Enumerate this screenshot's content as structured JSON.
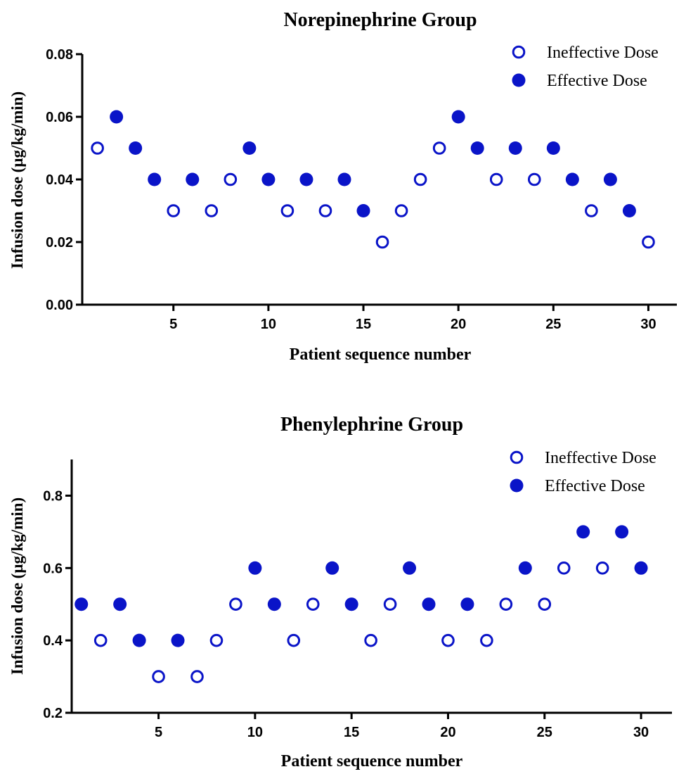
{
  "colors": {
    "marker": "#0a14c8",
    "axis": "#000000"
  },
  "chart_data": [
    {
      "type": "scatter",
      "title": "Norepinephrine Group",
      "xlabel": "Patient sequence number",
      "ylabel": "Infusion dose (µg/kg/min)",
      "xlim": [
        0.2,
        31.5
      ],
      "ylim": [
        0,
        0.08
      ],
      "xticks": [
        5,
        10,
        15,
        20,
        25,
        30
      ],
      "yticks": [
        0,
        0.02,
        0.04,
        0.06,
        0.08
      ],
      "ytick_labels": [
        "0.00",
        "0.02",
        "0.04",
        "0.06",
        "0.08"
      ],
      "legend_position": "top-right",
      "series": [
        {
          "name": "Ineffective Dose",
          "marker": "open-circle",
          "points": [
            [
              1,
              0.05
            ],
            [
              5,
              0.03
            ],
            [
              7,
              0.03
            ],
            [
              8,
              0.04
            ],
            [
              11,
              0.03
            ],
            [
              13,
              0.03
            ],
            [
              16,
              0.02
            ],
            [
              17,
              0.03
            ],
            [
              18,
              0.04
            ],
            [
              19,
              0.05
            ],
            [
              22,
              0.04
            ],
            [
              24,
              0.04
            ],
            [
              27,
              0.03
            ],
            [
              30,
              0.02
            ]
          ]
        },
        {
          "name": "Effective Dose",
          "marker": "filled-circle",
          "points": [
            [
              2,
              0.06
            ],
            [
              3,
              0.05
            ],
            [
              4,
              0.04
            ],
            [
              6,
              0.04
            ],
            [
              9,
              0.05
            ],
            [
              10,
              0.04
            ],
            [
              12,
              0.04
            ],
            [
              14,
              0.04
            ],
            [
              15,
              0.03
            ],
            [
              20,
              0.06
            ],
            [
              21,
              0.05
            ],
            [
              23,
              0.05
            ],
            [
              25,
              0.05
            ],
            [
              26,
              0.04
            ],
            [
              28,
              0.04
            ],
            [
              29,
              0.03
            ]
          ]
        }
      ]
    },
    {
      "type": "scatter",
      "title": "Phenylephrine Group",
      "xlabel": "Patient sequence number",
      "ylabel": "Infusion dose (µg/kg/min)",
      "xlim": [
        0.5,
        31.6
      ],
      "ylim": [
        0.2,
        0.9
      ],
      "xticks": [
        5,
        10,
        15,
        20,
        25,
        30
      ],
      "yticks": [
        0.2,
        0.4,
        0.6,
        0.8
      ],
      "ytick_labels": [
        "0.2",
        "0.4",
        "0.6",
        "0.8"
      ],
      "legend_position": "top-right",
      "series": [
        {
          "name": "Ineffective Dose",
          "marker": "open-circle",
          "points": [
            [
              2,
              0.4
            ],
            [
              5,
              0.3
            ],
            [
              7,
              0.3
            ],
            [
              8,
              0.4
            ],
            [
              9,
              0.5
            ],
            [
              12,
              0.4
            ],
            [
              13,
              0.5
            ],
            [
              16,
              0.4
            ],
            [
              17,
              0.5
            ],
            [
              20,
              0.4
            ],
            [
              22,
              0.4
            ],
            [
              23,
              0.5
            ],
            [
              25,
              0.5
            ],
            [
              26,
              0.6
            ],
            [
              28,
              0.6
            ]
          ]
        },
        {
          "name": "Effective Dose",
          "marker": "filled-circle",
          "points": [
            [
              1,
              0.5
            ],
            [
              3,
              0.5
            ],
            [
              4,
              0.4
            ],
            [
              6,
              0.4
            ],
            [
              10,
              0.6
            ],
            [
              11,
              0.5
            ],
            [
              14,
              0.6
            ],
            [
              15,
              0.5
            ],
            [
              18,
              0.6
            ],
            [
              19,
              0.5
            ],
            [
              21,
              0.5
            ],
            [
              24,
              0.6
            ],
            [
              27,
              0.7
            ],
            [
              29,
              0.7
            ],
            [
              30,
              0.6
            ]
          ]
        }
      ]
    }
  ]
}
